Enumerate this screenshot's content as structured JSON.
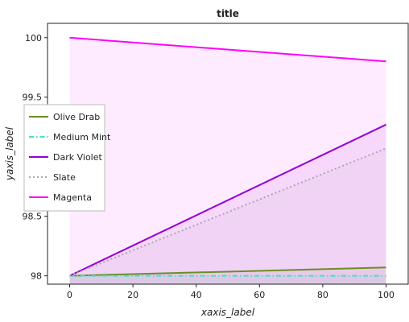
{
  "chart_data": {
    "type": "line",
    "title": "title",
    "xlabel": "xaxis_label",
    "ylabel": "yaxis_label",
    "x": [
      0,
      100
    ],
    "xlim": [
      -7,
      107
    ],
    "ylim": [
      97.93,
      100.12
    ],
    "xticks": [
      "0",
      "20",
      "40",
      "60",
      "80",
      "100"
    ],
    "xtick_values": [
      0,
      20,
      40,
      60,
      80,
      100
    ],
    "yticks": [
      "98",
      "98.5",
      "99",
      "99.5",
      "100"
    ],
    "ytick_values": [
      98,
      98.5,
      99,
      99.5,
      100
    ],
    "grid": false,
    "legend_position": "left",
    "series": [
      {
        "name": "Olive Drab",
        "color": "#6b8e23",
        "dash": "solid",
        "values": [
          98.0,
          98.07
        ]
      },
      {
        "name": "Medium Mint",
        "color": "#40e0d0",
        "dash": "dashdot",
        "values": [
          98.0,
          98.0
        ]
      },
      {
        "name": "Dark Violet",
        "color": "#9400d3",
        "dash": "solid",
        "values": [
          98.0,
          99.27
        ]
      },
      {
        "name": "Slate",
        "color": "#a9a9a9",
        "dash": "dotted",
        "values": [
          98.0,
          99.07
        ]
      },
      {
        "name": "Magenta",
        "color": "#ff00ff",
        "dash": "solid",
        "values": [
          100.0,
          99.8
        ]
      }
    ]
  }
}
